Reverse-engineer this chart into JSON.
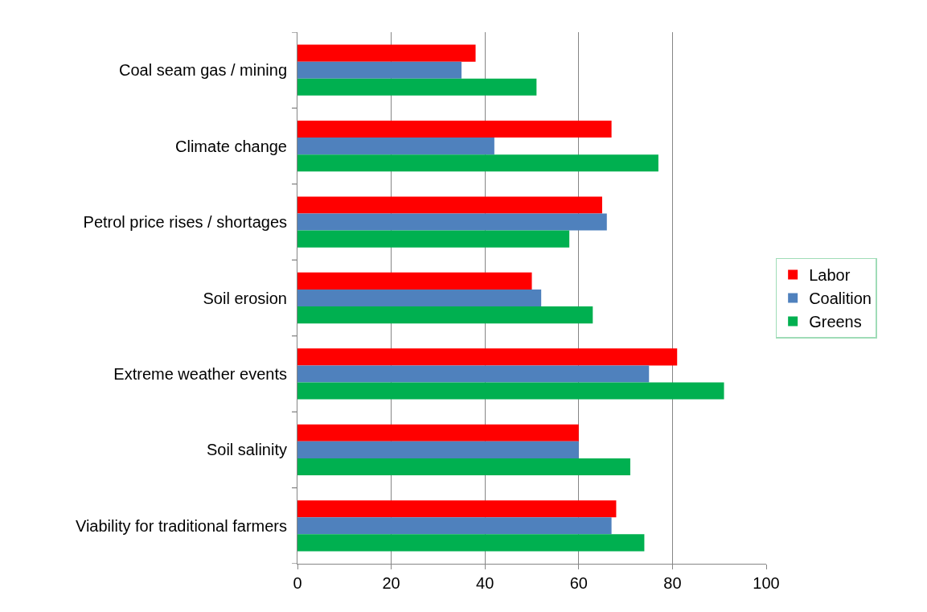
{
  "chart_data": {
    "type": "bar",
    "orientation": "horizontal",
    "categories": [
      "Coal seam gas / mining",
      "Climate change",
      "Petrol price rises / shortages",
      "Soil erosion",
      "Extreme weather events",
      "Soil salinity",
      "Viability for traditional farmers"
    ],
    "series": [
      {
        "name": "Labor",
        "color": "#ff0000",
        "values": [
          38,
          67,
          65,
          50,
          81,
          60,
          68
        ]
      },
      {
        "name": "Coalition",
        "color": "#4f81bd",
        "values": [
          35,
          42,
          66,
          52,
          75,
          60,
          67
        ]
      },
      {
        "name": "Greens",
        "color": "#00b050",
        "values": [
          51,
          77,
          58,
          63,
          91,
          71,
          74
        ]
      }
    ],
    "xlim": [
      0,
      100
    ],
    "xticks": [
      0,
      20,
      40,
      60,
      80,
      100
    ],
    "grid": "x",
    "legend": "right"
  }
}
